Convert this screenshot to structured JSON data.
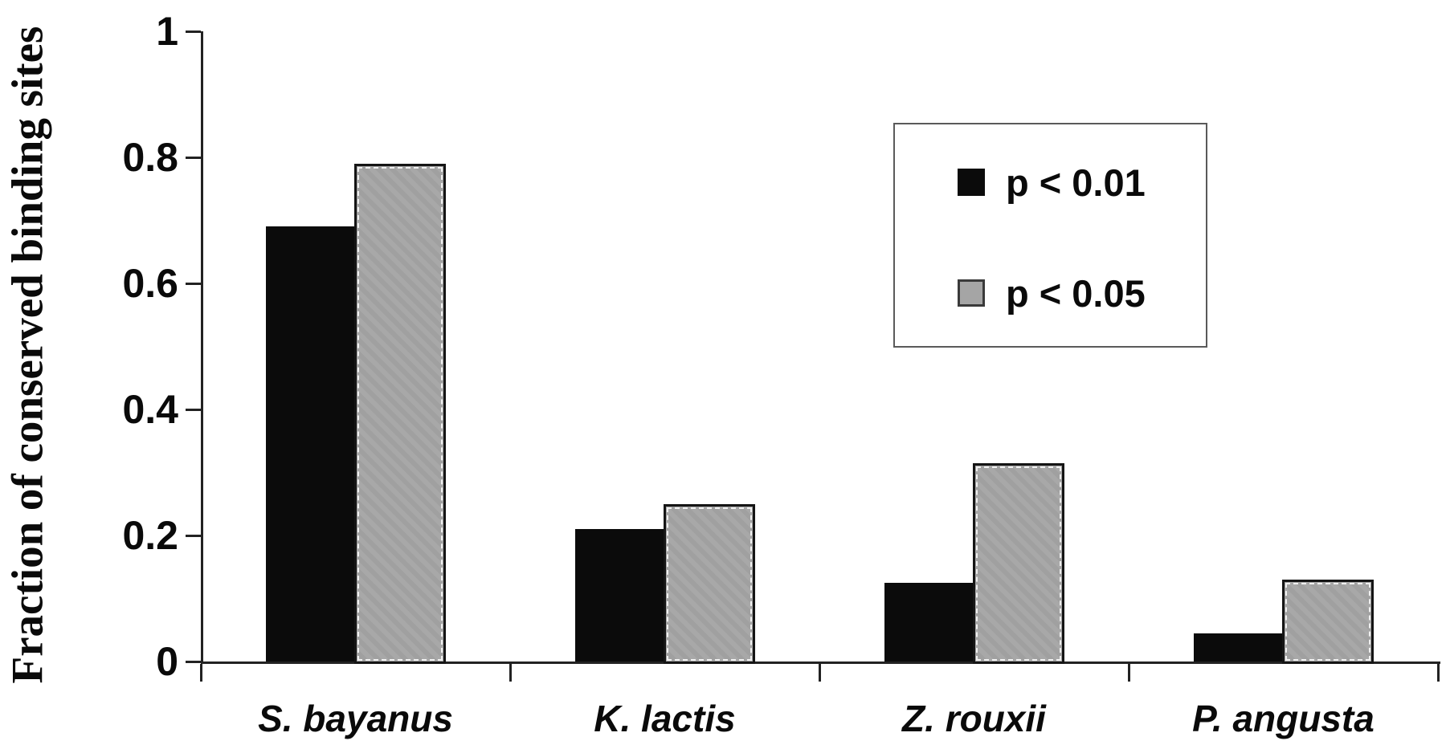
{
  "chart_data": {
    "type": "bar",
    "title": "",
    "ylabel": "Fraction of conserved binding sites",
    "xlabel": "",
    "ylim": [
      0,
      1
    ],
    "grid": false,
    "legend_position": "upper right",
    "yticks": [
      {
        "label": "1",
        "value": 1.0
      },
      {
        "label": "0.8",
        "value": 0.8
      },
      {
        "label": "0.6",
        "value": 0.6
      },
      {
        "label": "0.4",
        "value": 0.4
      },
      {
        "label": "0.2",
        "value": 0.2
      },
      {
        "label": "0",
        "value": 0.0
      }
    ],
    "categories": [
      "S. bayanus",
      "K. lactis",
      "Z. rouxii",
      "P. angusta"
    ],
    "series": [
      {
        "name": "p < 0.01",
        "color": "#0b0b0b",
        "values": [
          0.69,
          0.21,
          0.125,
          0.045
        ]
      },
      {
        "name": "p < 0.05",
        "color": "#a5a5a5",
        "values": [
          0.79,
          0.25,
          0.315,
          0.13
        ]
      }
    ]
  },
  "colors": {
    "axis": "#222222",
    "text": "#0a0a0a",
    "legend_border": "#5a5a5a",
    "gray_bar_border": "#151515"
  }
}
